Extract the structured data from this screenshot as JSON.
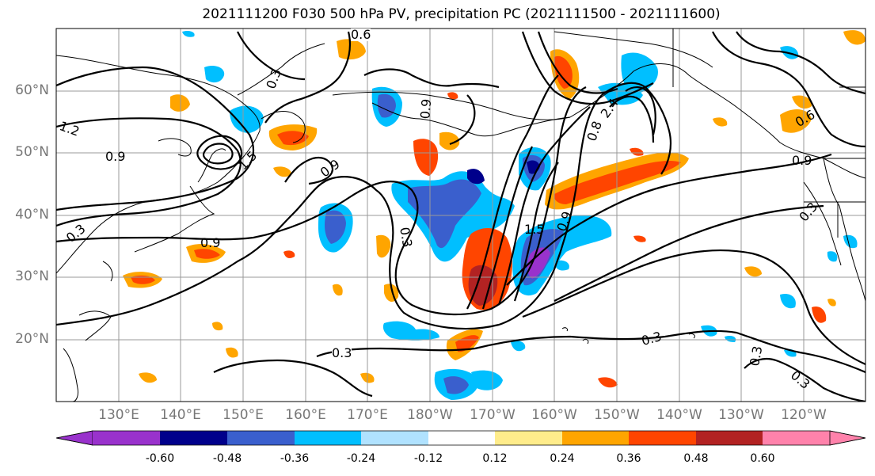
{
  "title": "2021111200 F030 500 hPa PV, precipitation PC (2021111500 - 2021111600)",
  "lat_labels": [
    "60°N",
    "50°N",
    "40°N",
    "30°N",
    "20°N"
  ],
  "lon_labels": [
    "130°E",
    "140°E",
    "150°E",
    "160°E",
    "170°E",
    "180°W",
    "170°W",
    "160°W",
    "150°W",
    "140°W",
    "130°W",
    "120°W"
  ],
  "contour_labels": [
    "0.6",
    "0.3",
    "1.2",
    "0.9",
    "1.5",
    "0.9",
    "0.3",
    "0.9",
    "0.3",
    "0.3",
    "0.8",
    "2.4",
    "0.6",
    "0.9",
    "0.3",
    "0.3",
    "0.3",
    "0.3",
    "1.5",
    "0.9",
    "0.9"
  ],
  "colorbar": {
    "tick_labels": [
      "-0.60",
      "-0.48",
      "-0.36",
      "-0.24",
      "-0.12",
      "0.12",
      "0.24",
      "0.36",
      "0.48",
      "0.60"
    ],
    "colors": [
      "#9932cc",
      "#00008b",
      "#3a5fcd",
      "#00bfff",
      "#b0e2ff",
      "#ffffff",
      "#ffec8b",
      "#ffa500",
      "#ff4500",
      "#b22222",
      "#ff82ab"
    ]
  }
}
